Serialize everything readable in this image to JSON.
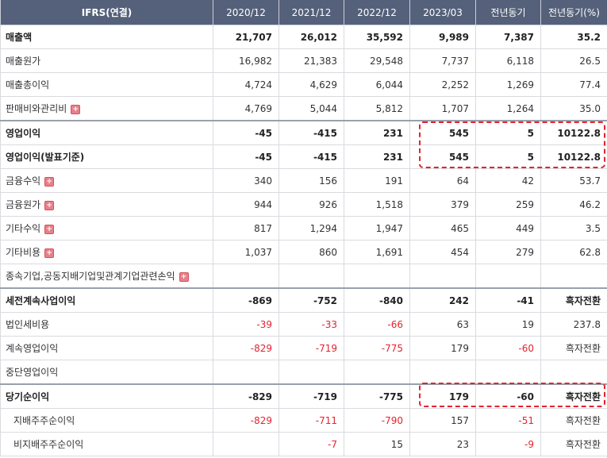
{
  "header": {
    "label": "IFRS(연결)",
    "cols": [
      "2020/12",
      "2021/12",
      "2022/12",
      "2023/03",
      "전년동기",
      "전년동기(%)"
    ]
  },
  "rows": [
    {
      "label": "매출액",
      "vals": [
        "21,707",
        "26,012",
        "35,592",
        "9,989",
        "7,387",
        "35.2"
      ]
    },
    {
      "label": "매출원가",
      "vals": [
        "16,982",
        "21,383",
        "29,548",
        "7,737",
        "6,118",
        "26.5"
      ]
    },
    {
      "label": "매출총이익",
      "vals": [
        "4,724",
        "4,629",
        "6,044",
        "2,252",
        "1,269",
        "77.4"
      ]
    },
    {
      "label": "판매비와관리비",
      "vals": [
        "4,769",
        "5,044",
        "5,812",
        "1,707",
        "1,264",
        "35.0"
      ]
    },
    {
      "label": "영업이익",
      "vals": [
        "-45",
        "-415",
        "231",
        "545",
        "5",
        "10122.8"
      ]
    },
    {
      "label": "영업이익(발표기준)",
      "vals": [
        "-45",
        "-415",
        "231",
        "545",
        "5",
        "10122.8"
      ]
    },
    {
      "label": "금융수익",
      "vals": [
        "340",
        "156",
        "191",
        "64",
        "42",
        "53.7"
      ]
    },
    {
      "label": "금융원가",
      "vals": [
        "944",
        "926",
        "1,518",
        "379",
        "259",
        "46.2"
      ]
    },
    {
      "label": "기타수익",
      "vals": [
        "817",
        "1,294",
        "1,947",
        "465",
        "449",
        "3.5"
      ]
    },
    {
      "label": "기타비용",
      "vals": [
        "1,037",
        "860",
        "1,691",
        "454",
        "279",
        "62.8"
      ]
    },
    {
      "label": "종속기업,공동지배기업및관계기업관련손익",
      "vals": []
    },
    {
      "label": "세전계속사업이익",
      "vals": [
        "-869",
        "-752",
        "-840",
        "242",
        "-41",
        "흑자전환"
      ]
    },
    {
      "label": "법인세비용",
      "vals": [
        "-39",
        "-33",
        "-66",
        "63",
        "19",
        "237.8"
      ]
    },
    {
      "label": "계속영업이익",
      "vals": [
        "-829",
        "-719",
        "-775",
        "179",
        "-60",
        "흑자전환"
      ]
    },
    {
      "label": "중단영업이익",
      "vals": [
        "",
        "",
        "",
        "",
        "",
        ""
      ]
    },
    {
      "label": "당기순이익",
      "vals": [
        "-829",
        "-719",
        "-775",
        "179",
        "-60",
        "흑자전환"
      ]
    },
    {
      "label": "지배주주순이익",
      "vals": [
        "-829",
        "-711",
        "-790",
        "157",
        "-51",
        "흑자전환"
      ]
    },
    {
      "label": "비지배주주순이익",
      "vals": [
        "",
        "-7",
        "15",
        "23",
        "-9",
        "흑자전환"
      ]
    }
  ],
  "expand_icon": "plus-icon",
  "colors": {
    "header_bg": "#55617a",
    "negative": "#e3232f",
    "highlight": "#e3232f"
  }
}
